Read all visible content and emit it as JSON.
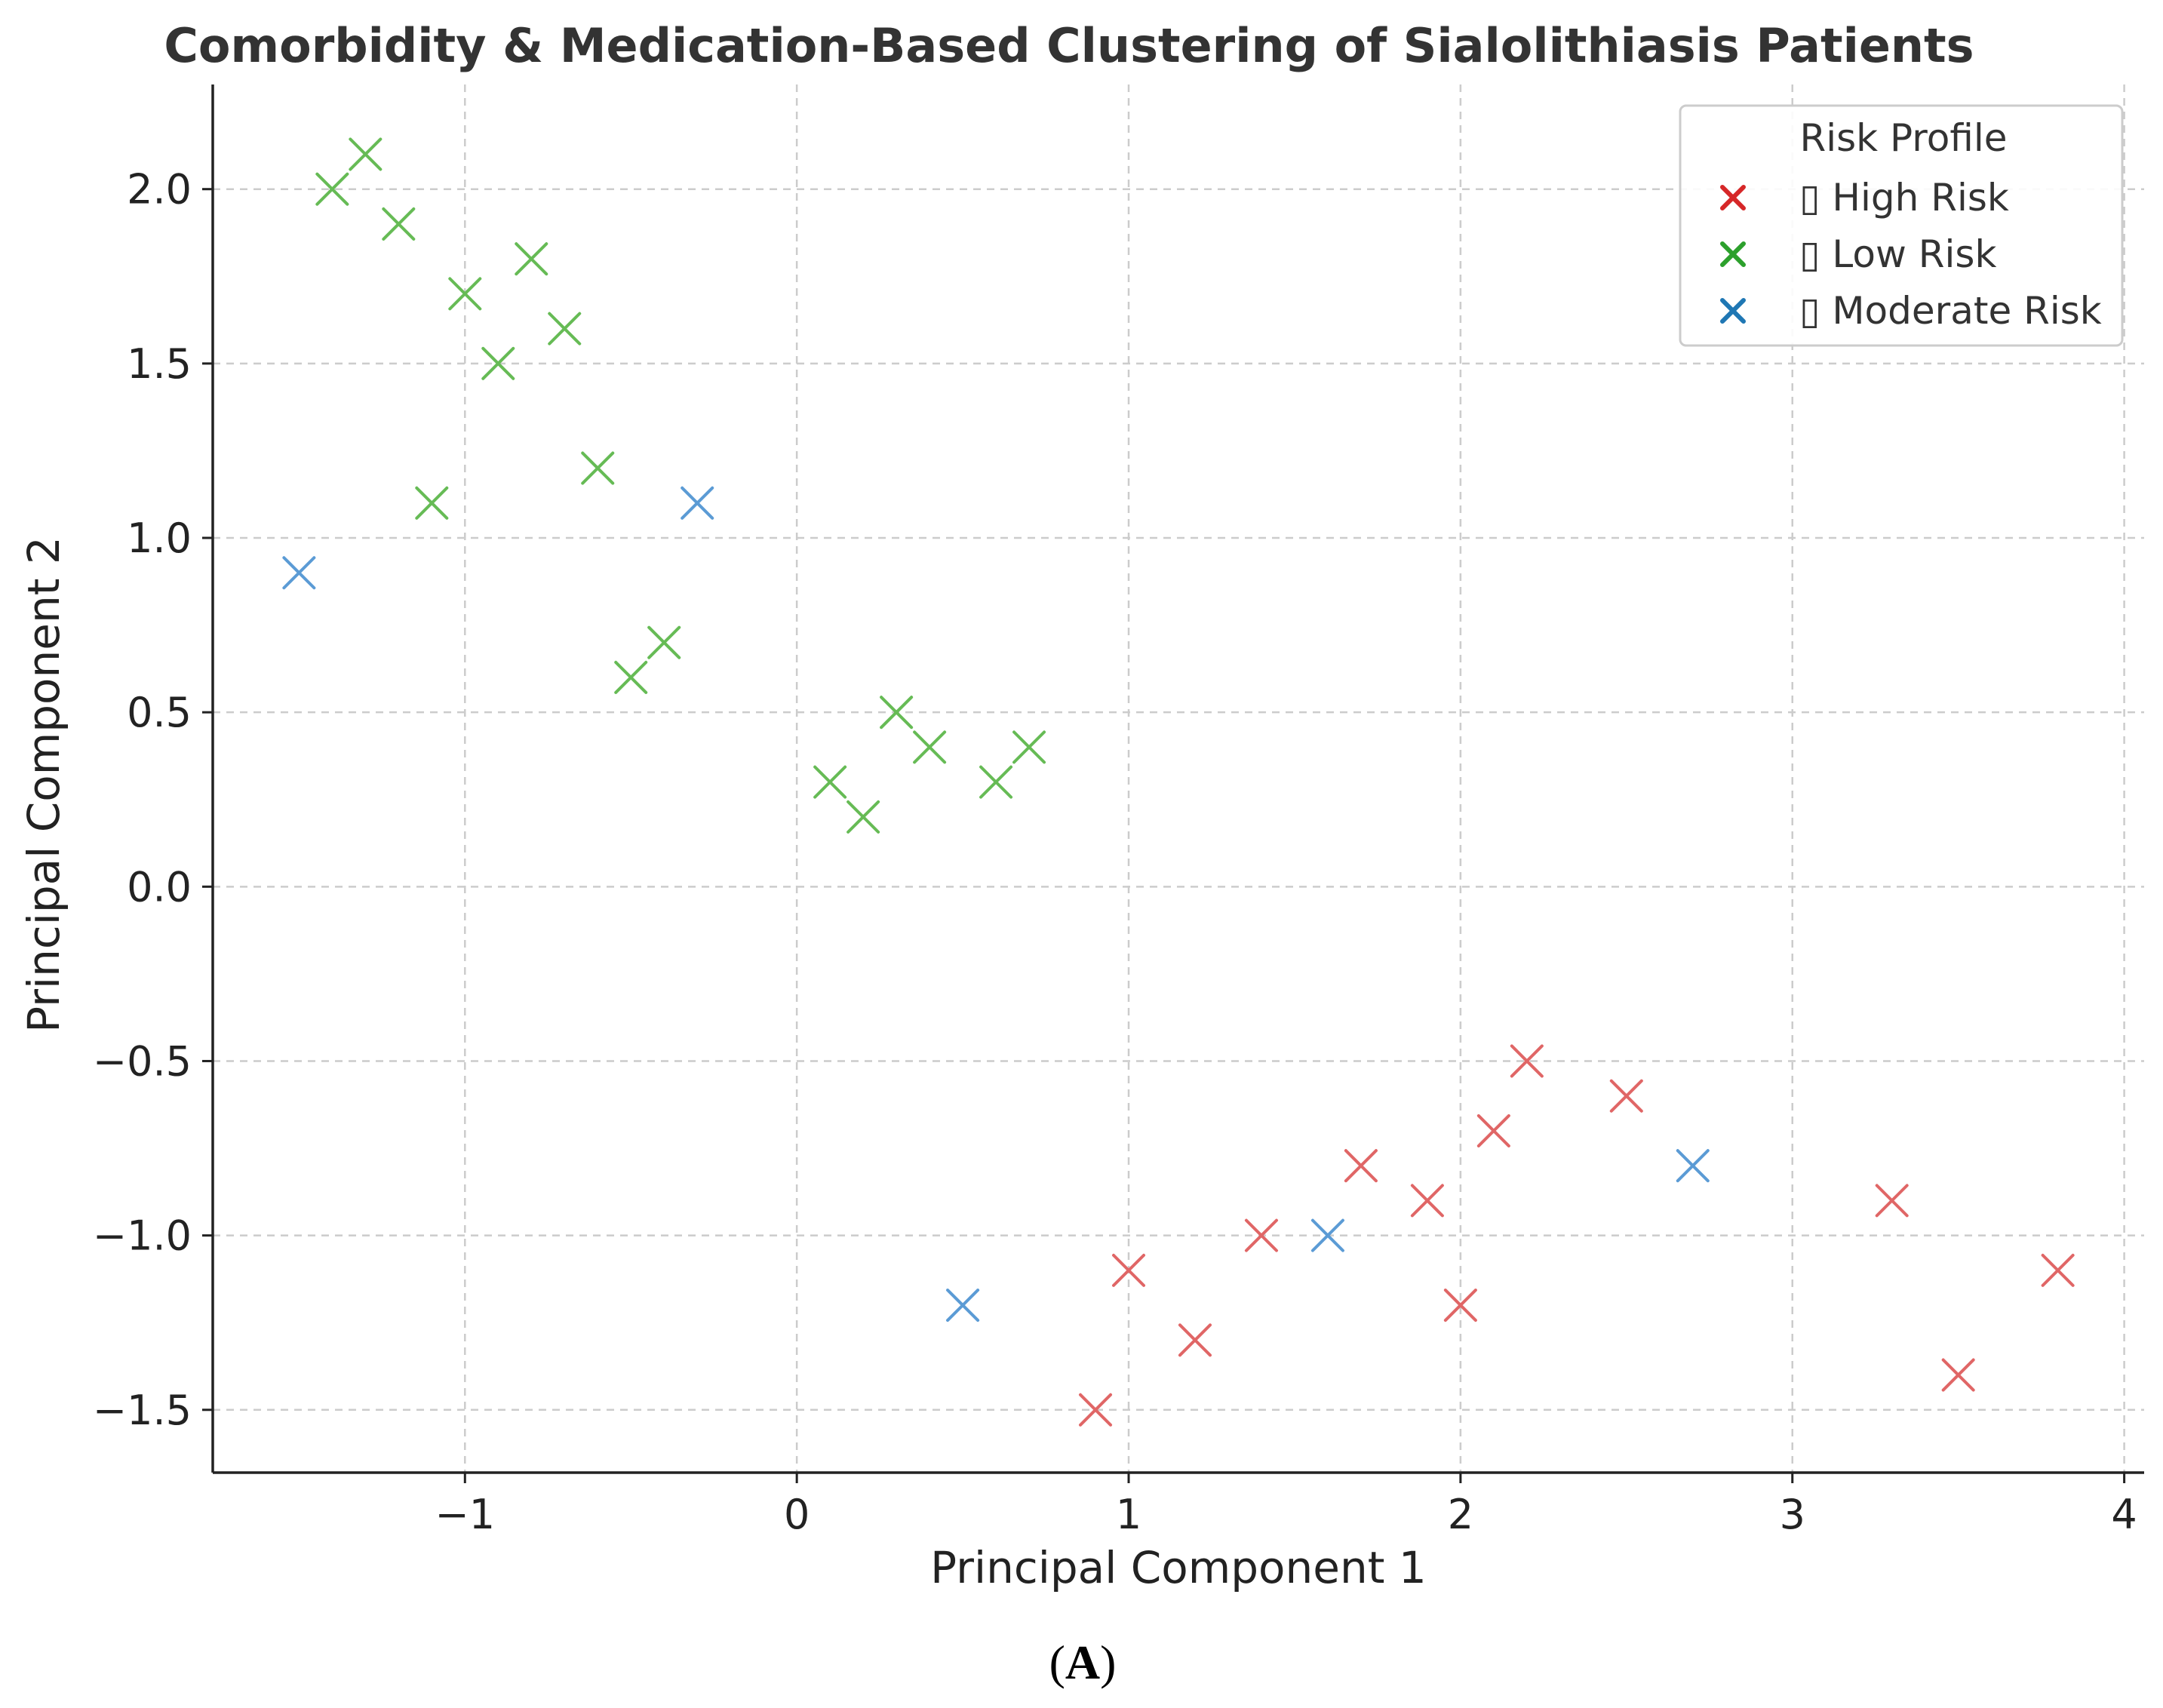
{
  "chart_data": {
    "type": "scatter",
    "title": "Comorbidity & Medication-Based Clustering of Sialolithiasis Patients",
    "xlabel": "Principal Component 1",
    "ylabel": "Principal Component 2",
    "xlim": [
      -1.76,
      4.06
    ],
    "ylim": [
      -1.68,
      2.3
    ],
    "xticks": [
      -1,
      0,
      1,
      2,
      3,
      4
    ],
    "xtick_labels": [
      "−1",
      "0",
      "1",
      "2",
      "3",
      "4"
    ],
    "yticks": [
      -1.5,
      -1.0,
      -0.5,
      0.0,
      0.5,
      1.0,
      1.5,
      2.0
    ],
    "ytick_labels": [
      "−1.5",
      "−1.0",
      "−0.5",
      "0.0",
      "0.5",
      "1.0",
      "1.5",
      "2.0"
    ],
    "grid": true,
    "marker": "x",
    "legend": {
      "title": "Risk Profile",
      "position": "top-right",
      "entries": [
        {
          "name": "▯ High Risk",
          "color": "#d62728"
        },
        {
          "name": "▯ Low Risk",
          "color": "#2ca02c"
        },
        {
          "name": "▯ Moderate Risk",
          "color": "#1f77b4"
        }
      ]
    },
    "series": [
      {
        "name": "High Risk",
        "color": "#e06666",
        "points": [
          [
            0.9,
            -1.5
          ],
          [
            1.0,
            -1.1
          ],
          [
            1.2,
            -1.3
          ],
          [
            1.4,
            -1.0
          ],
          [
            1.7,
            -0.8
          ],
          [
            1.9,
            -0.9
          ],
          [
            2.0,
            -1.2
          ],
          [
            2.1,
            -0.7
          ],
          [
            2.2,
            -0.5
          ],
          [
            2.5,
            -0.6
          ],
          [
            3.3,
            -0.9
          ],
          [
            3.5,
            -1.4
          ],
          [
            3.8,
            -1.1
          ]
        ]
      },
      {
        "name": "Low Risk",
        "color": "#66bb55",
        "points": [
          [
            -1.4,
            2.0
          ],
          [
            -1.3,
            2.1
          ],
          [
            -1.2,
            1.9
          ],
          [
            -1.1,
            1.1
          ],
          [
            -1.0,
            1.7
          ],
          [
            -0.9,
            1.5
          ],
          [
            -0.8,
            1.8
          ],
          [
            -0.7,
            1.6
          ],
          [
            -0.6,
            1.2
          ],
          [
            -0.5,
            0.6
          ],
          [
            -0.4,
            0.7
          ],
          [
            0.1,
            0.3
          ],
          [
            0.2,
            0.2
          ],
          [
            0.3,
            0.5
          ],
          [
            0.4,
            0.4
          ],
          [
            0.6,
            0.3
          ],
          [
            0.7,
            0.4
          ]
        ]
      },
      {
        "name": "Moderate Risk",
        "color": "#5b9bd5",
        "points": [
          [
            -1.5,
            0.9
          ],
          [
            -0.3,
            1.1
          ],
          [
            0.5,
            -1.2
          ],
          [
            1.6,
            -1.0
          ],
          [
            2.7,
            -0.8
          ]
        ]
      }
    ]
  },
  "caption": {
    "open": "(",
    "letter": "A",
    "close": ")"
  }
}
